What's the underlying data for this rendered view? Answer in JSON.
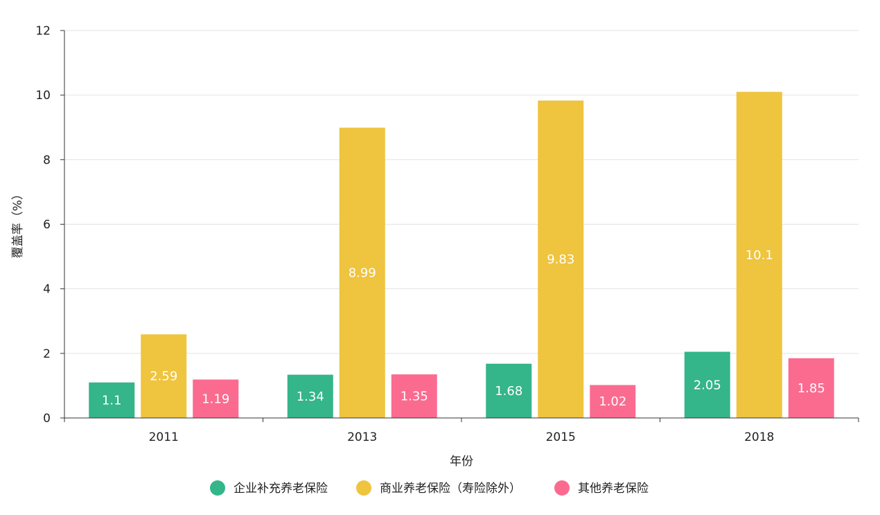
{
  "chart_data": {
    "type": "bar",
    "title": "",
    "xlabel": "年份",
    "ylabel": "覆盖率（%）",
    "ylim": [
      0,
      12
    ],
    "yticks": [
      0,
      2,
      4,
      6,
      8,
      10,
      12
    ],
    "grid": true,
    "legend_position": "bottom",
    "categories": [
      "2011",
      "2013",
      "2015",
      "2018"
    ],
    "series": [
      {
        "name": "企业补充养老保险",
        "color": "#34b58a",
        "values": [
          1.1,
          1.34,
          1.68,
          2.05
        ],
        "labels": [
          "1.1",
          "1.34",
          "1.68",
          "2.05"
        ]
      },
      {
        "name": "商业养老保险（寿险除外）",
        "color": "#efc43e",
        "values": [
          2.59,
          8.99,
          9.83,
          10.1
        ],
        "labels": [
          "2.59",
          "8.99",
          "9.83",
          "10.1"
        ]
      },
      {
        "name": "其他养老保险",
        "color": "#fb6b90",
        "values": [
          1.19,
          1.35,
          1.02,
          1.85
        ],
        "labels": [
          "1.19",
          "1.35",
          "1.02",
          "1.85"
        ]
      }
    ]
  }
}
